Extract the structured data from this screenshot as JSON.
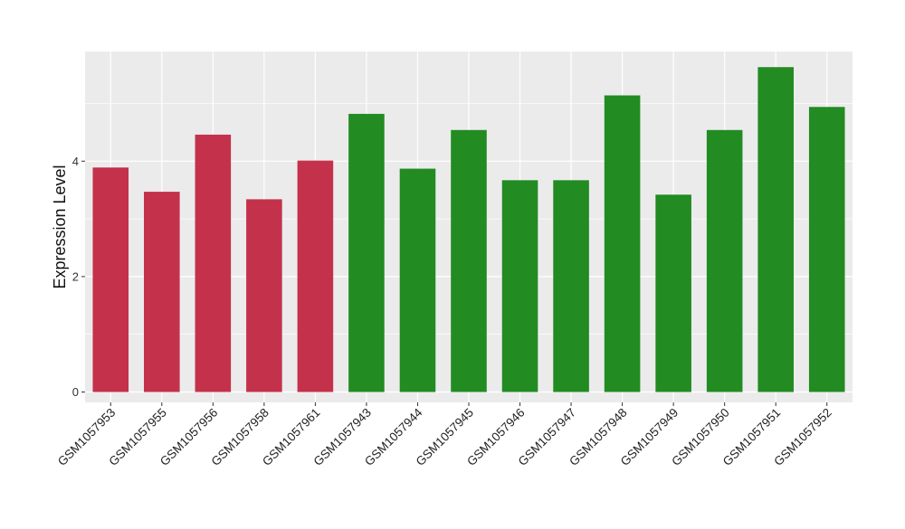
{
  "chart_data": {
    "type": "bar",
    "ylabel": "Expression Level",
    "xlabel": "",
    "title": "",
    "ylim": [
      -0.18,
      5.9
    ],
    "yticks": [
      0,
      2,
      4
    ],
    "grid": true,
    "legend": "none",
    "colors": {
      "group_a": "#c4314b",
      "group_b": "#228b22",
      "panel_bg": "#ebebeb",
      "grid": "#ffffff"
    },
    "categories": [
      "GSM1057953",
      "GSM1057955",
      "GSM1057956",
      "GSM1057958",
      "GSM1057961",
      "GSM1057943",
      "GSM1057944",
      "GSM1057945",
      "GSM1057946",
      "GSM1057947",
      "GSM1057948",
      "GSM1057949",
      "GSM1057950",
      "GSM1057951",
      "GSM1057952"
    ],
    "values": [
      3.89,
      3.47,
      4.46,
      3.34,
      4.01,
      4.82,
      3.87,
      4.54,
      3.67,
      3.67,
      5.14,
      3.42,
      4.54,
      5.63,
      4.94
    ],
    "groups": [
      "a",
      "a",
      "a",
      "a",
      "a",
      "b",
      "b",
      "b",
      "b",
      "b",
      "b",
      "b",
      "b",
      "b",
      "b"
    ]
  }
}
